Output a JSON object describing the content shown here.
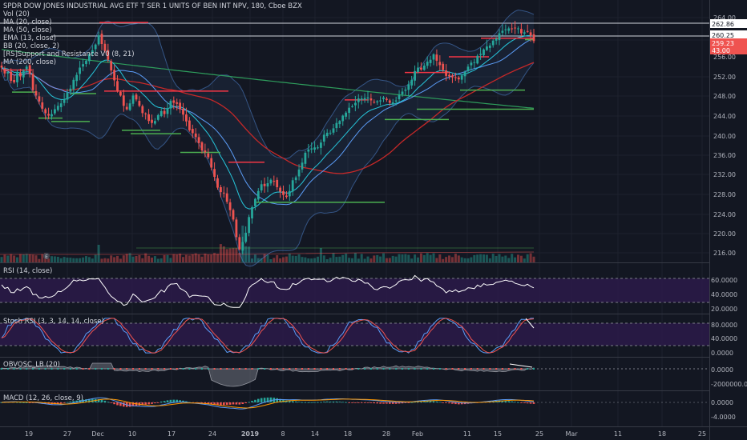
{
  "colors": {
    "background": "#131722",
    "grid": "#1e222d",
    "up": "#26a69a",
    "down": "#ef5350",
    "ma20": "#5b9cf6",
    "ma50": "#3179f5",
    "ema13": "#00bcd4",
    "bb_basis": "#e54b4b",
    "ma200": "#2e9d5c",
    "support": "#4caf50",
    "resistance": "#f23645",
    "rsi_band": "#3a1f5d",
    "rsi_line": "#ffffff",
    "stoch_k": "#5b9cf6",
    "stoch_d": "#ef5350"
  },
  "legend": {
    "title": "SPDR DOW JONES INDUSTRIAL AVG ETF T SER 1 UNITS OF BEN INT NPV, 180, Cboe BZX",
    "vol": "Vol (20)",
    "ma20": "MA (20, close)",
    "ma50": "MA (50, close)",
    "ema13": "EMA (13, close)",
    "bb": "BB (20, close, 2)",
    "sr": "[RS]Support and Resistance V0 (8, 21)",
    "ma200": "MA (200, close)"
  },
  "panels": {
    "rsi_label": "RSI (14, close)",
    "stoch_label": "Stoch RSI (3, 3, 14, 14, close)",
    "obv_label": "OBVOSC_LB (20)",
    "macd_label": "MACD (12, 26, close, 9)"
  },
  "price_axis": {
    "ticks": [
      "264.00",
      "256.00",
      "252.00",
      "248.00",
      "244.00",
      "240.00",
      "236.00",
      "232.00",
      "228.00",
      "224.00",
      "220.00",
      "216.00"
    ],
    "badges": [
      {
        "text": "262.86",
        "kind": "line"
      },
      {
        "text": "260.25",
        "kind": "line"
      },
      {
        "text": "259.23",
        "kind": "price"
      },
      {
        "text": "43.00",
        "kind": "red"
      }
    ]
  },
  "rsi_axis": {
    "ticks": [
      "60.0000",
      "40.0000",
      "20.0000"
    ]
  },
  "stoch_axis": {
    "ticks": [
      "80.0000",
      "40.0000",
      "0.0000"
    ]
  },
  "obv_axis": {
    "ticks": [
      "0.0000",
      "-2000000.0000"
    ]
  },
  "macd_axis": {
    "ticks": [
      "0.0000",
      "-4.0000"
    ]
  },
  "time_axis": {
    "labels": [
      "19",
      "27",
      "Dec",
      "10",
      "17",
      "24",
      "2019",
      "8",
      "14",
      "18",
      "28",
      "Feb",
      "11",
      "15",
      "25",
      "Mar",
      "11",
      "18",
      "25"
    ]
  },
  "chart_data": {
    "type": "candlestick",
    "title": "SPDR DOW JONES INDUSTRIAL AVG ETF T SER 1 UNITS OF BEN INT NPV, 180, Cboe BZX",
    "x_labels": [
      "19",
      "27",
      "Dec",
      "10",
      "17",
      "24",
      "2019",
      "8",
      "14",
      "18",
      "28",
      "Feb",
      "11",
      "15",
      "25",
      "Mar",
      "11",
      "18",
      "25"
    ],
    "price_range": [
      214,
      266
    ],
    "close": [
      253.8,
      252.6,
      252.9,
      251.1,
      250.8,
      252.9,
      252.0,
      253.2,
      254.0,
      252.5,
      249.2,
      248.1,
      246.9,
      245.4,
      244.5,
      244.0,
      244.3,
      245.3,
      246.0,
      246.5,
      247.3,
      248.7,
      249.5,
      251.3,
      252.3,
      253.8,
      254.5,
      255.2,
      256.5,
      257.3,
      258.5,
      260.4,
      258.6,
      257.2,
      255.4,
      253.2,
      251.2,
      249.1,
      248.1,
      246.0,
      245.3,
      246.5,
      248.1,
      247.3,
      246.0,
      244.5,
      244.3,
      242.9,
      242.5,
      242.9,
      244.1,
      244.9,
      244.3,
      245.5,
      247.0,
      246.6,
      246.4,
      245.3,
      244.2,
      242.8,
      241.0,
      240.4,
      239.6,
      238.4,
      236.9,
      236.5,
      235.5,
      233.4,
      231.5,
      229.3,
      228.4,
      228.2,
      226.4,
      224.7,
      222.8,
      219.2,
      216.7,
      218.2,
      220.1,
      223.3,
      225.3,
      227.0,
      228.6,
      230.0,
      229.6,
      230.2,
      230.9,
      230.6,
      229.4,
      228.5,
      227.8,
      227.4,
      228.6,
      230.8,
      231.4,
      233.0,
      234.4,
      236.4,
      237.1,
      237.3,
      237.5,
      237.5,
      238.5,
      240.1,
      240.5,
      240.5,
      241.4,
      242.5,
      242.9,
      244.0,
      244.6,
      245.6,
      245.9,
      246.6,
      247.5,
      247.5,
      247.6,
      247.7,
      247.1,
      246.8,
      246.9,
      247.1,
      247.7,
      247.2,
      246.6,
      246.7,
      247.1,
      248.2,
      248.9,
      249.3,
      250.4,
      251.3,
      253.1,
      253.8,
      253.4,
      254.2,
      255.0,
      255.4,
      256.5,
      255.2,
      254.3,
      253.3,
      252.1,
      252.0,
      251.8,
      251.7,
      251.4,
      252.2,
      253.0,
      254.0,
      254.8,
      254.9,
      256.2,
      256.6,
      257.5,
      258.1,
      258.3,
      259.3,
      259.7,
      260.8,
      261.3,
      261.6,
      261.8,
      261.8,
      261.9,
      261.8,
      260.8,
      261.0,
      261.1,
      260.3,
      259.2
    ],
    "indicators": [
      "MA (20, close)",
      "MA (50, close)",
      "EMA (13, close)",
      "BB (20, close, 2)",
      "MA (200, close)",
      "Vol (20)",
      "RSI (14, close)",
      "Stoch RSI (3, 3, 14, 14, close)",
      "OBVOSC_LB (20)",
      "MACD (12, 26, close, 9)"
    ]
  }
}
